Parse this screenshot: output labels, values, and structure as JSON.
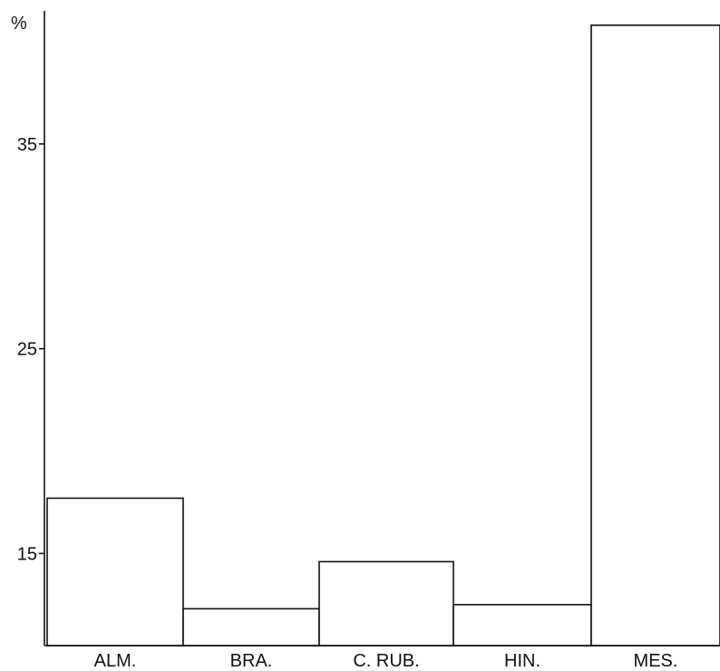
{
  "chart_data": {
    "type": "bar",
    "ylabel": "%",
    "categories": [
      "ALM.",
      "BRA.",
      "C. RUB.",
      "HIN.",
      "MES."
    ],
    "values": [
      17.7,
      12.3,
      14.6,
      12.5,
      40.8
    ],
    "yticks": [
      "15",
      "25",
      "35"
    ],
    "ylim": [
      10.5,
      41.5
    ],
    "grid": false,
    "legend": "none"
  }
}
